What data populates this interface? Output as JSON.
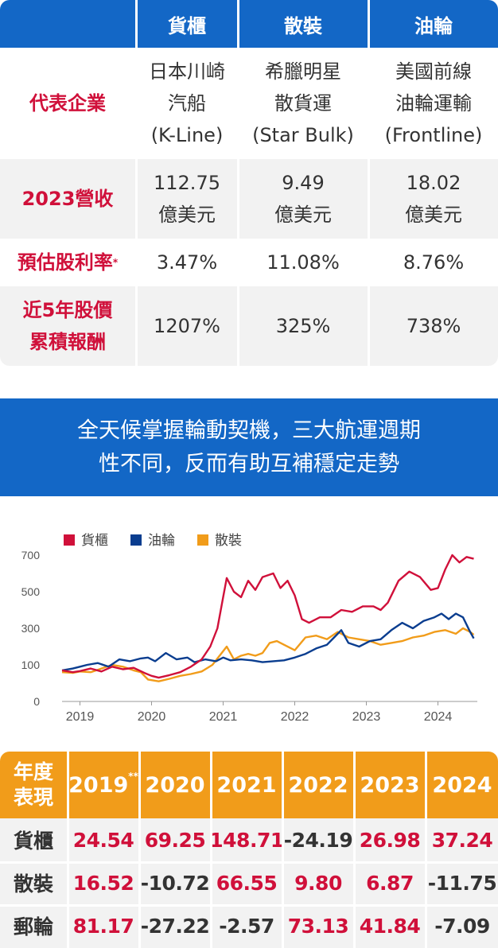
{
  "top_table": {
    "headers": [
      "貨櫃",
      "散裝",
      "油輪"
    ],
    "rows": [
      {
        "label": "代表企業",
        "values": [
          [
            "日本川崎",
            "汽船",
            "(K-Line)"
          ],
          [
            "希臘明星",
            "散貨運",
            "(Star Bulk)"
          ],
          [
            "美國前線",
            "油輪運輸",
            "(Frontline)"
          ]
        ]
      },
      {
        "label": "2023營收",
        "values": [
          [
            "112.75",
            "億美元"
          ],
          [
            "9.49",
            "億美元"
          ],
          [
            "18.02",
            "億美元"
          ]
        ]
      },
      {
        "label": "預估股利率",
        "label_mark": "*",
        "values": [
          [
            "3.47%"
          ],
          [
            "11.08%"
          ],
          [
            "8.76%"
          ]
        ]
      },
      {
        "label_lines": [
          "近5年股價",
          "累積報酬"
        ],
        "values": [
          [
            "1207%"
          ],
          [
            "325%"
          ],
          [
            "738%"
          ]
        ]
      }
    ]
  },
  "banner": {
    "line1": "全天候掌握輪動契機，三大航運週期",
    "line2": "性不同，反而有助互補穩定走勢"
  },
  "chart_data": {
    "type": "line",
    "title": "",
    "legend": [
      {
        "name": "貨櫃",
        "color": "#d0103a"
      },
      {
        "name": "油輪",
        "color": "#0a3d8f"
      },
      {
        "name": "散裝",
        "color": "#f19c1a"
      }
    ],
    "y_ticks": [
      "700",
      "500",
      "300",
      "100",
      "0"
    ],
    "x_ticks": [
      "2019",
      "2020",
      "2021",
      "2022",
      "2023",
      "2024"
    ],
    "ylim": [
      0,
      700
    ],
    "xlim": [
      2019.0,
      2024.55
    ],
    "series": [
      {
        "name": "貨櫃",
        "color": "#d0103a",
        "points": [
          [
            2018.75,
            85
          ],
          [
            2018.9,
            80
          ],
          [
            2019.0,
            83
          ],
          [
            2019.15,
            90
          ],
          [
            2019.3,
            82
          ],
          [
            2019.45,
            95
          ],
          [
            2019.6,
            88
          ],
          [
            2019.75,
            92
          ],
          [
            2019.9,
            78
          ],
          [
            2020.0,
            70
          ],
          [
            2020.1,
            65
          ],
          [
            2020.25,
            72
          ],
          [
            2020.4,
            80
          ],
          [
            2020.55,
            95
          ],
          [
            2020.7,
            130
          ],
          [
            2020.82,
            200
          ],
          [
            2020.92,
            300
          ],
          [
            2021.0,
            470
          ],
          [
            2021.05,
            575
          ],
          [
            2021.15,
            500
          ],
          [
            2021.25,
            470
          ],
          [
            2021.35,
            560
          ],
          [
            2021.45,
            510
          ],
          [
            2021.55,
            580
          ],
          [
            2021.7,
            600
          ],
          [
            2021.8,
            520
          ],
          [
            2021.9,
            560
          ],
          [
            2022.0,
            480
          ],
          [
            2022.1,
            350
          ],
          [
            2022.2,
            330
          ],
          [
            2022.35,
            360
          ],
          [
            2022.5,
            360
          ],
          [
            2022.65,
            400
          ],
          [
            2022.8,
            390
          ],
          [
            2022.95,
            420
          ],
          [
            2023.1,
            420
          ],
          [
            2023.2,
            400
          ],
          [
            2023.3,
            440
          ],
          [
            2023.45,
            560
          ],
          [
            2023.6,
            610
          ],
          [
            2023.75,
            580
          ],
          [
            2023.9,
            510
          ],
          [
            2024.0,
            520
          ],
          [
            2024.1,
            620
          ],
          [
            2024.2,
            700
          ],
          [
            2024.3,
            660
          ],
          [
            2024.4,
            690
          ],
          [
            2024.5,
            680
          ]
        ]
      },
      {
        "name": "油輪",
        "color": "#0a3d8f",
        "points": [
          [
            2018.75,
            85
          ],
          [
            2018.9,
            90
          ],
          [
            2019.0,
            95
          ],
          [
            2019.1,
            100
          ],
          [
            2019.25,
            110
          ],
          [
            2019.4,
            95
          ],
          [
            2019.55,
            130
          ],
          [
            2019.7,
            120
          ],
          [
            2019.85,
            135
          ],
          [
            2019.95,
            140
          ],
          [
            2020.05,
            120
          ],
          [
            2020.2,
            165
          ],
          [
            2020.35,
            130
          ],
          [
            2020.5,
            140
          ],
          [
            2020.6,
            115
          ],
          [
            2020.75,
            130
          ],
          [
            2020.9,
            120
          ],
          [
            2021.0,
            140
          ],
          [
            2021.1,
            125
          ],
          [
            2021.25,
            130
          ],
          [
            2021.4,
            125
          ],
          [
            2021.55,
            115
          ],
          [
            2021.7,
            120
          ],
          [
            2021.85,
            125
          ],
          [
            2022.0,
            140
          ],
          [
            2022.15,
            160
          ],
          [
            2022.3,
            190
          ],
          [
            2022.45,
            210
          ],
          [
            2022.55,
            250
          ],
          [
            2022.65,
            290
          ],
          [
            2022.75,
            220
          ],
          [
            2022.9,
            200
          ],
          [
            2023.05,
            230
          ],
          [
            2023.2,
            240
          ],
          [
            2023.35,
            290
          ],
          [
            2023.5,
            330
          ],
          [
            2023.65,
            300
          ],
          [
            2023.8,
            340
          ],
          [
            2023.95,
            360
          ],
          [
            2024.05,
            380
          ],
          [
            2024.15,
            350
          ],
          [
            2024.25,
            380
          ],
          [
            2024.35,
            360
          ],
          [
            2024.45,
            280
          ],
          [
            2024.5,
            245
          ]
        ]
      },
      {
        "name": "散裝",
        "color": "#f19c1a",
        "points": [
          [
            2018.75,
            80
          ],
          [
            2018.9,
            78
          ],
          [
            2019.0,
            82
          ],
          [
            2019.15,
            80
          ],
          [
            2019.3,
            90
          ],
          [
            2019.45,
            100
          ],
          [
            2019.6,
            95
          ],
          [
            2019.75,
            85
          ],
          [
            2019.85,
            80
          ],
          [
            2019.95,
            60
          ],
          [
            2020.1,
            55
          ],
          [
            2020.25,
            62
          ],
          [
            2020.4,
            70
          ],
          [
            2020.55,
            75
          ],
          [
            2020.7,
            82
          ],
          [
            2020.85,
            100
          ],
          [
            2020.95,
            150
          ],
          [
            2021.05,
            200
          ],
          [
            2021.15,
            130
          ],
          [
            2021.25,
            150
          ],
          [
            2021.35,
            160
          ],
          [
            2021.45,
            150
          ],
          [
            2021.55,
            165
          ],
          [
            2021.65,
            220
          ],
          [
            2021.75,
            230
          ],
          [
            2021.85,
            210
          ],
          [
            2022.0,
            180
          ],
          [
            2022.15,
            250
          ],
          [
            2022.3,
            260
          ],
          [
            2022.45,
            240
          ],
          [
            2022.6,
            280
          ],
          [
            2022.75,
            250
          ],
          [
            2022.9,
            240
          ],
          [
            2023.05,
            230
          ],
          [
            2023.2,
            210
          ],
          [
            2023.35,
            220
          ],
          [
            2023.5,
            230
          ],
          [
            2023.65,
            250
          ],
          [
            2023.8,
            260
          ],
          [
            2023.95,
            280
          ],
          [
            2024.1,
            290
          ],
          [
            2024.25,
            270
          ],
          [
            2024.35,
            300
          ],
          [
            2024.45,
            280
          ],
          [
            2024.5,
            265
          ]
        ]
      }
    ]
  },
  "bottom_table": {
    "corner_lines": [
      "年度",
      "表現"
    ],
    "years": [
      "2019",
      "2020",
      "2021",
      "2022",
      "2023",
      "2024"
    ],
    "year_mark": "**",
    "rows": [
      {
        "label": "貨櫃",
        "values": [
          "24.54",
          "69.25",
          "148.71",
          "-24.19",
          "26.98",
          "37.24"
        ]
      },
      {
        "label": "散裝",
        "values": [
          "16.52",
          "-10.72",
          "66.55",
          "9.80",
          "6.87",
          "-11.75"
        ]
      },
      {
        "label": "郵輪",
        "values": [
          "81.17",
          "-27.22",
          "-2.57",
          "73.13",
          "41.84",
          "-7.09"
        ]
      }
    ]
  }
}
